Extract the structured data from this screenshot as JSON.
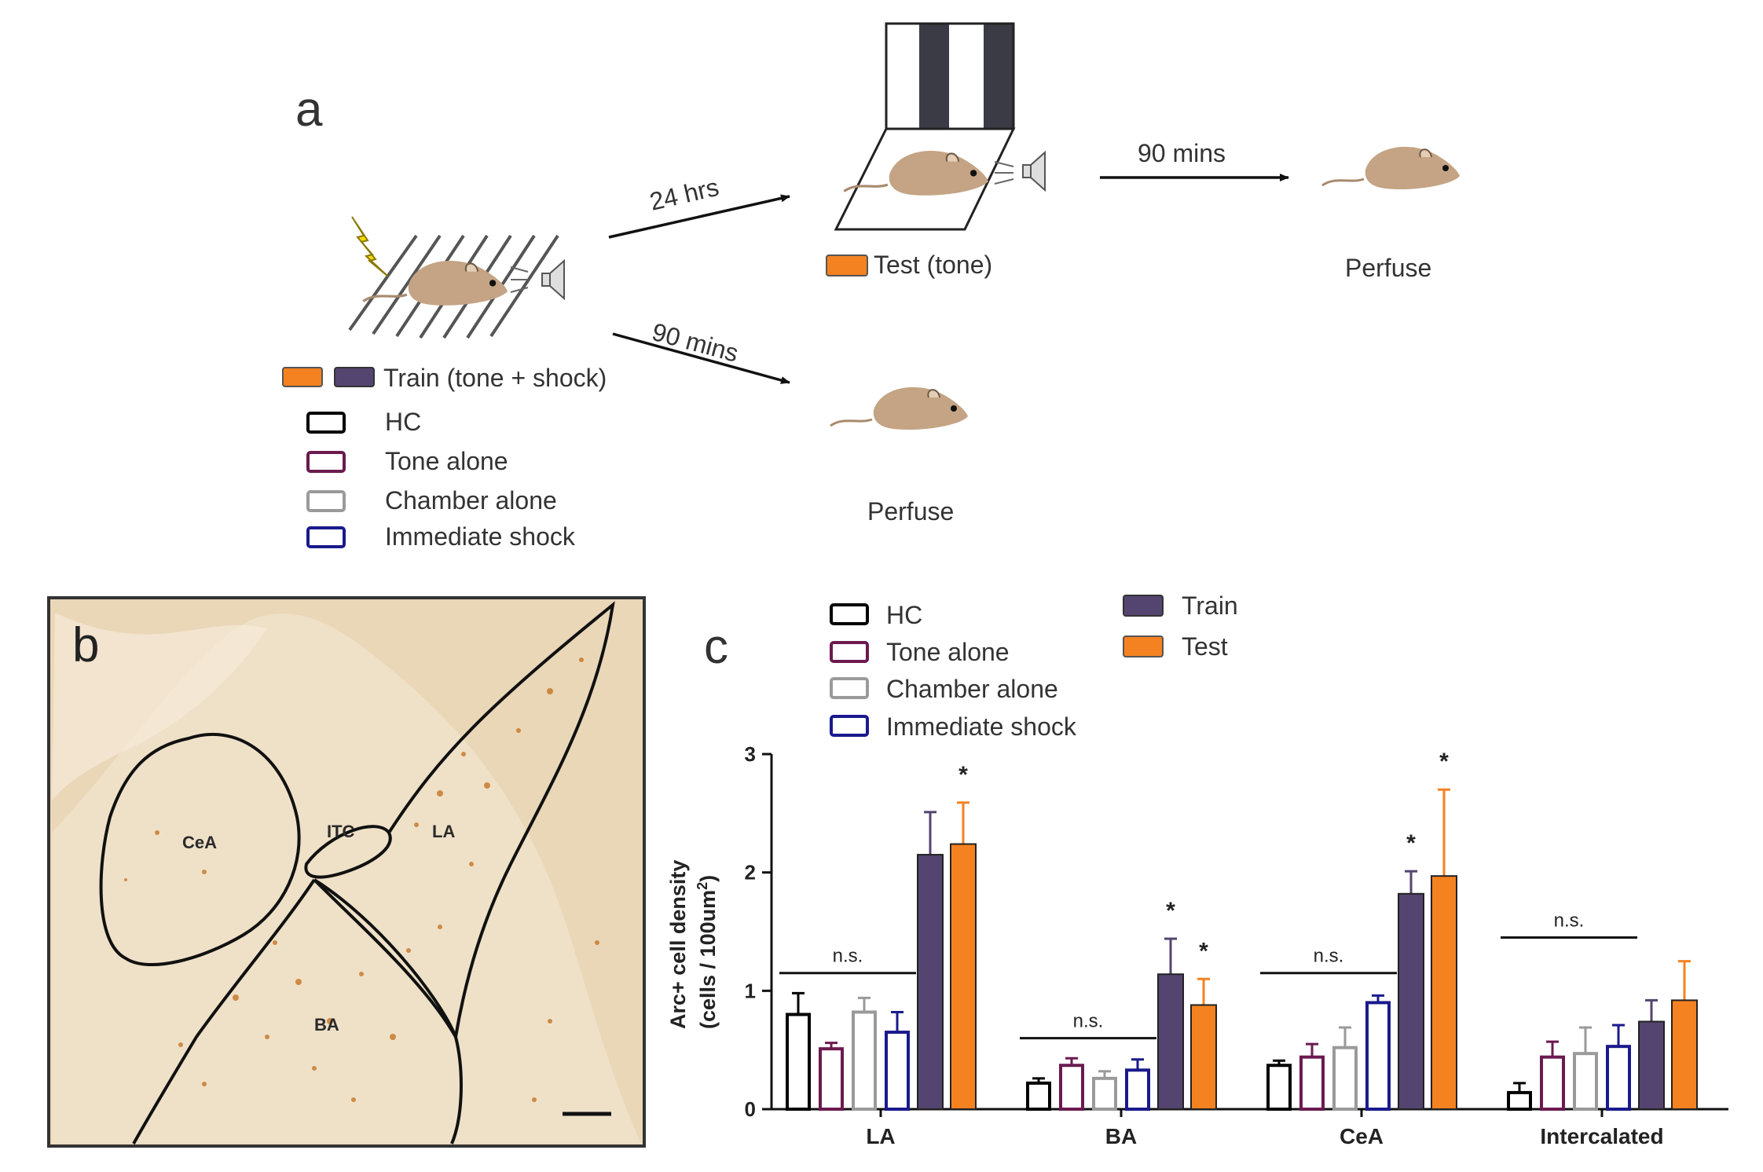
{
  "panel_a": {
    "panel_label": "a",
    "arrow_24hrs": "24 hrs",
    "arrow_90mins_top": "90 mins",
    "arrow_90mins_bottom": "90 mins",
    "test_label": "Test (tone)",
    "perfuse_top": "Perfuse",
    "perfuse_bottom": "Perfuse",
    "train_label": "Train (tone + shock)",
    "legend": [
      "HC",
      "Tone alone",
      "Chamber alone",
      "Immediate shock"
    ]
  },
  "panel_b": {
    "panel_label": "b",
    "regions": [
      "CeA",
      "ITC",
      "LA",
      "BA"
    ]
  },
  "panel_c": {
    "panel_label": "c",
    "legend_left": [
      "HC",
      "Tone alone",
      "Chamber alone",
      "Immediate shock"
    ],
    "legend_right": [
      "Train",
      "Test"
    ]
  },
  "colors": {
    "HC": "#000000",
    "Tone alone": "#6b1a4f",
    "Chamber alone": "#9a9a9a",
    "Immediate shock": "#1a1a8c",
    "Train": "#544470",
    "Test": "#f58220",
    "mouse": "#c4a484"
  },
  "chart_data": {
    "type": "bar",
    "ylabel_line1": "Arc+ cell density",
    "ylabel_line2": "(cells / 100um",
    "ylabel_sup": "2",
    "ylabel_close": ")",
    "ylim": [
      0,
      3
    ],
    "yticks": [
      "0",
      "1",
      "2",
      "3"
    ],
    "categories": [
      "LA",
      "BA",
      "CeA",
      "Intercalated"
    ],
    "series": [
      {
        "name": "HC",
        "filled": false,
        "values": [
          0.8,
          0.22,
          0.37,
          0.14
        ],
        "errors": [
          0.18,
          0.04,
          0.04,
          0.08
        ]
      },
      {
        "name": "Tone alone",
        "filled": false,
        "values": [
          0.51,
          0.37,
          0.44,
          0.44
        ],
        "errors": [
          0.05,
          0.06,
          0.11,
          0.13
        ]
      },
      {
        "name": "Chamber alone",
        "filled": false,
        "values": [
          0.82,
          0.26,
          0.52,
          0.47
        ],
        "errors": [
          0.12,
          0.06,
          0.17,
          0.22
        ]
      },
      {
        "name": "Immediate shock",
        "filled": false,
        "values": [
          0.65,
          0.33,
          0.9,
          0.53
        ],
        "errors": [
          0.17,
          0.09,
          0.06,
          0.18
        ]
      },
      {
        "name": "Train",
        "filled": true,
        "values": [
          2.15,
          1.14,
          1.82,
          0.74
        ],
        "errors": [
          0.36,
          0.3,
          0.19,
          0.18
        ]
      },
      {
        "name": "Test",
        "filled": true,
        "values": [
          2.24,
          0.88,
          1.97,
          0.92
        ],
        "errors": [
          0.35,
          0.22,
          0.73,
          0.33
        ]
      }
    ],
    "significance": [
      {
        "category": "LA",
        "series": "Test",
        "label": "*"
      },
      {
        "category": "BA",
        "series": "Train",
        "label": "*"
      },
      {
        "category": "BA",
        "series": "Test",
        "label": "*"
      },
      {
        "category": "CeA",
        "series": "Train",
        "label": "*"
      },
      {
        "category": "CeA",
        "series": "Test",
        "label": "*"
      }
    ],
    "ns_brackets": [
      {
        "category": "LA",
        "label": "n.s.",
        "level": 1.15
      },
      {
        "category": "BA",
        "label": "n.s.",
        "level": 0.6
      },
      {
        "category": "CeA",
        "label": "n.s.",
        "level": 1.15
      },
      {
        "category": "Intercalated",
        "label": "n.s.",
        "level": 1.45
      }
    ]
  }
}
